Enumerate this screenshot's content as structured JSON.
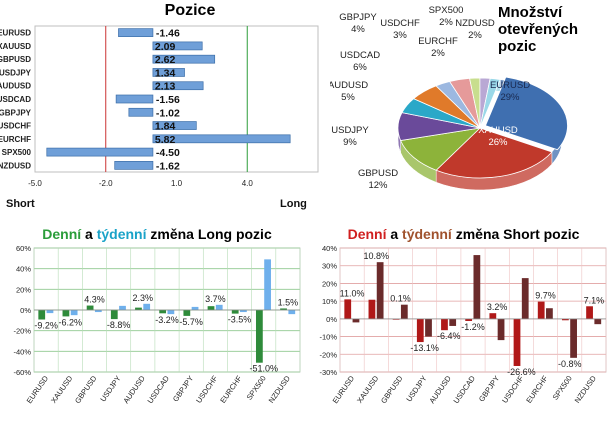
{
  "colors": {
    "bar_blue": "#6f9fd8",
    "bar_green_dark": "#2e7d32",
    "bar_red_dark": "#a31515",
    "gridline_red": "#cc3333",
    "gridline_green": "#2e9e3a",
    "pie": [
      "#3f6fb0",
      "#c0392b",
      "#8db33a",
      "#6a4a9a",
      "#2aa8c8",
      "#e07a2a",
      "#9cb8e0",
      "#e59a9a",
      "#c8de8e",
      "#b9a8d4",
      "#9ad8e8"
    ]
  },
  "chart_data": [
    {
      "id": "positions",
      "type": "bar",
      "orientation": "horizontal",
      "title": "Pozice",
      "categories": [
        "EURUSD",
        "XAUUSD",
        "GBPUSD",
        "USDJPY",
        "AUDUSD",
        "USDCAD",
        "GBPJPY",
        "USDCHF",
        "EURCHF",
        "SPX500",
        "NZDUSD"
      ],
      "values": [
        -1.46,
        2.09,
        2.62,
        1.34,
        2.13,
        -1.56,
        -1.02,
        1.84,
        5.82,
        -4.5,
        -1.62
      ],
      "value_labels": [
        "-1.46",
        "2.09",
        "2.62",
        "1.34",
        "2.13",
        "-1.56",
        "-1.02",
        "1.84",
        "5.82",
        "-4.50",
        "-1.62"
      ],
      "xlim": [
        -5.0,
        7.0
      ],
      "x_ticks": [
        "-5.0",
        "-2.0",
        "1.0",
        "4.0"
      ],
      "x_tick_values": [
        -5.0,
        -2.0,
        1.0,
        4.0
      ],
      "reference_lines": [
        -2.0,
        4.0
      ],
      "xlabel_left": "Short",
      "xlabel_right": "Long"
    },
    {
      "id": "share",
      "type": "pie",
      "title": "Množství otevřených pozic",
      "labels": [
        "EURUSD",
        "XAUUSD",
        "GBPUSD",
        "USDJPY",
        "AUDUSD",
        "USDCAD",
        "USDCHF",
        "GBPJPY",
        "EURCHF",
        "SPX500",
        "NZDUSD"
      ],
      "values": [
        29,
        26,
        12,
        9,
        5,
        6,
        3,
        4,
        2,
        2,
        2
      ],
      "value_labels": [
        "29%",
        "26%",
        "12%",
        "9%",
        "5%",
        "6%",
        "3%",
        "4%",
        "2%",
        "2%",
        "2%"
      ]
    },
    {
      "id": "longchg",
      "type": "bar",
      "title_parts": [
        "Denní",
        "a",
        "týdenní",
        "změna Long pozic"
      ],
      "categories": [
        "EURUSD",
        "XAUUSD",
        "GBPUSD",
        "USDJPY",
        "AUDUSD",
        "USDCAD",
        "GBPJPY",
        "USDCHF",
        "EURCHF",
        "SPX500",
        "NZDUSD"
      ],
      "series": [
        {
          "values": [
            -9.2,
            -6.2,
            4.3,
            -8.8,
            2.3,
            -3.2,
            -5.7,
            3.7,
            -3.5,
            -51.0,
            1.5
          ]
        },
        {
          "values": [
            -3.0,
            -5.0,
            -2.0,
            4.0,
            6.0,
            -4.0,
            3.0,
            5.0,
            -2.0,
            49.0,
            -4.0
          ]
        }
      ],
      "value_labels": [
        "-9.2%",
        "-6.2%",
        "4.3%",
        "-8.8%",
        "2.3%",
        "-3.2%",
        "-5.7%",
        "3.7%",
        "-3.5%",
        "-51.0%",
        "1.5%"
      ],
      "ylim": [
        -60,
        60
      ],
      "y_ticks": [
        "60%",
        "40%",
        "20%",
        "0%",
        "-20%",
        "-40%",
        "-60%"
      ],
      "y_tick_values": [
        60,
        40,
        20,
        0,
        -20,
        -40,
        -60
      ]
    },
    {
      "id": "shortchg",
      "type": "bar",
      "title_parts": [
        "Denní",
        "a",
        "týdenní",
        "změna Short pozic"
      ],
      "categories": [
        "EURUSD",
        "XAUUSD",
        "GBPUSD",
        "USDJPY",
        "AUDUSD",
        "USDCAD",
        "GBPJPY",
        "USDCHF",
        "EURCHF",
        "SPX500",
        "NZDUSD"
      ],
      "series": [
        {
          "values": [
            11.0,
            10.8,
            0.1,
            -13.1,
            -6.4,
            -1.2,
            3.2,
            -26.6,
            9.7,
            -0.8,
            7.1
          ]
        },
        {
          "values": [
            -2.0,
            32.0,
            8.0,
            -10.0,
            -4.0,
            36.0,
            -12.0,
            23.0,
            6.0,
            -22.0,
            -3.0
          ]
        }
      ],
      "value_labels": [
        "11.0%",
        "10.8%",
        "0.1%",
        "-13.1%",
        "-6.4%",
        "-1.2%",
        "3.2%",
        "-26.6%",
        "9.7%",
        "-0.8%",
        "7.1%"
      ],
      "ylim": [
        -30,
        40
      ],
      "y_ticks": [
        "40%",
        "30%",
        "20%",
        "10%",
        "0%",
        "-10%",
        "-20%",
        "-30%"
      ],
      "y_tick_values": [
        40,
        30,
        20,
        10,
        0,
        -10,
        -20,
        -30
      ]
    }
  ]
}
